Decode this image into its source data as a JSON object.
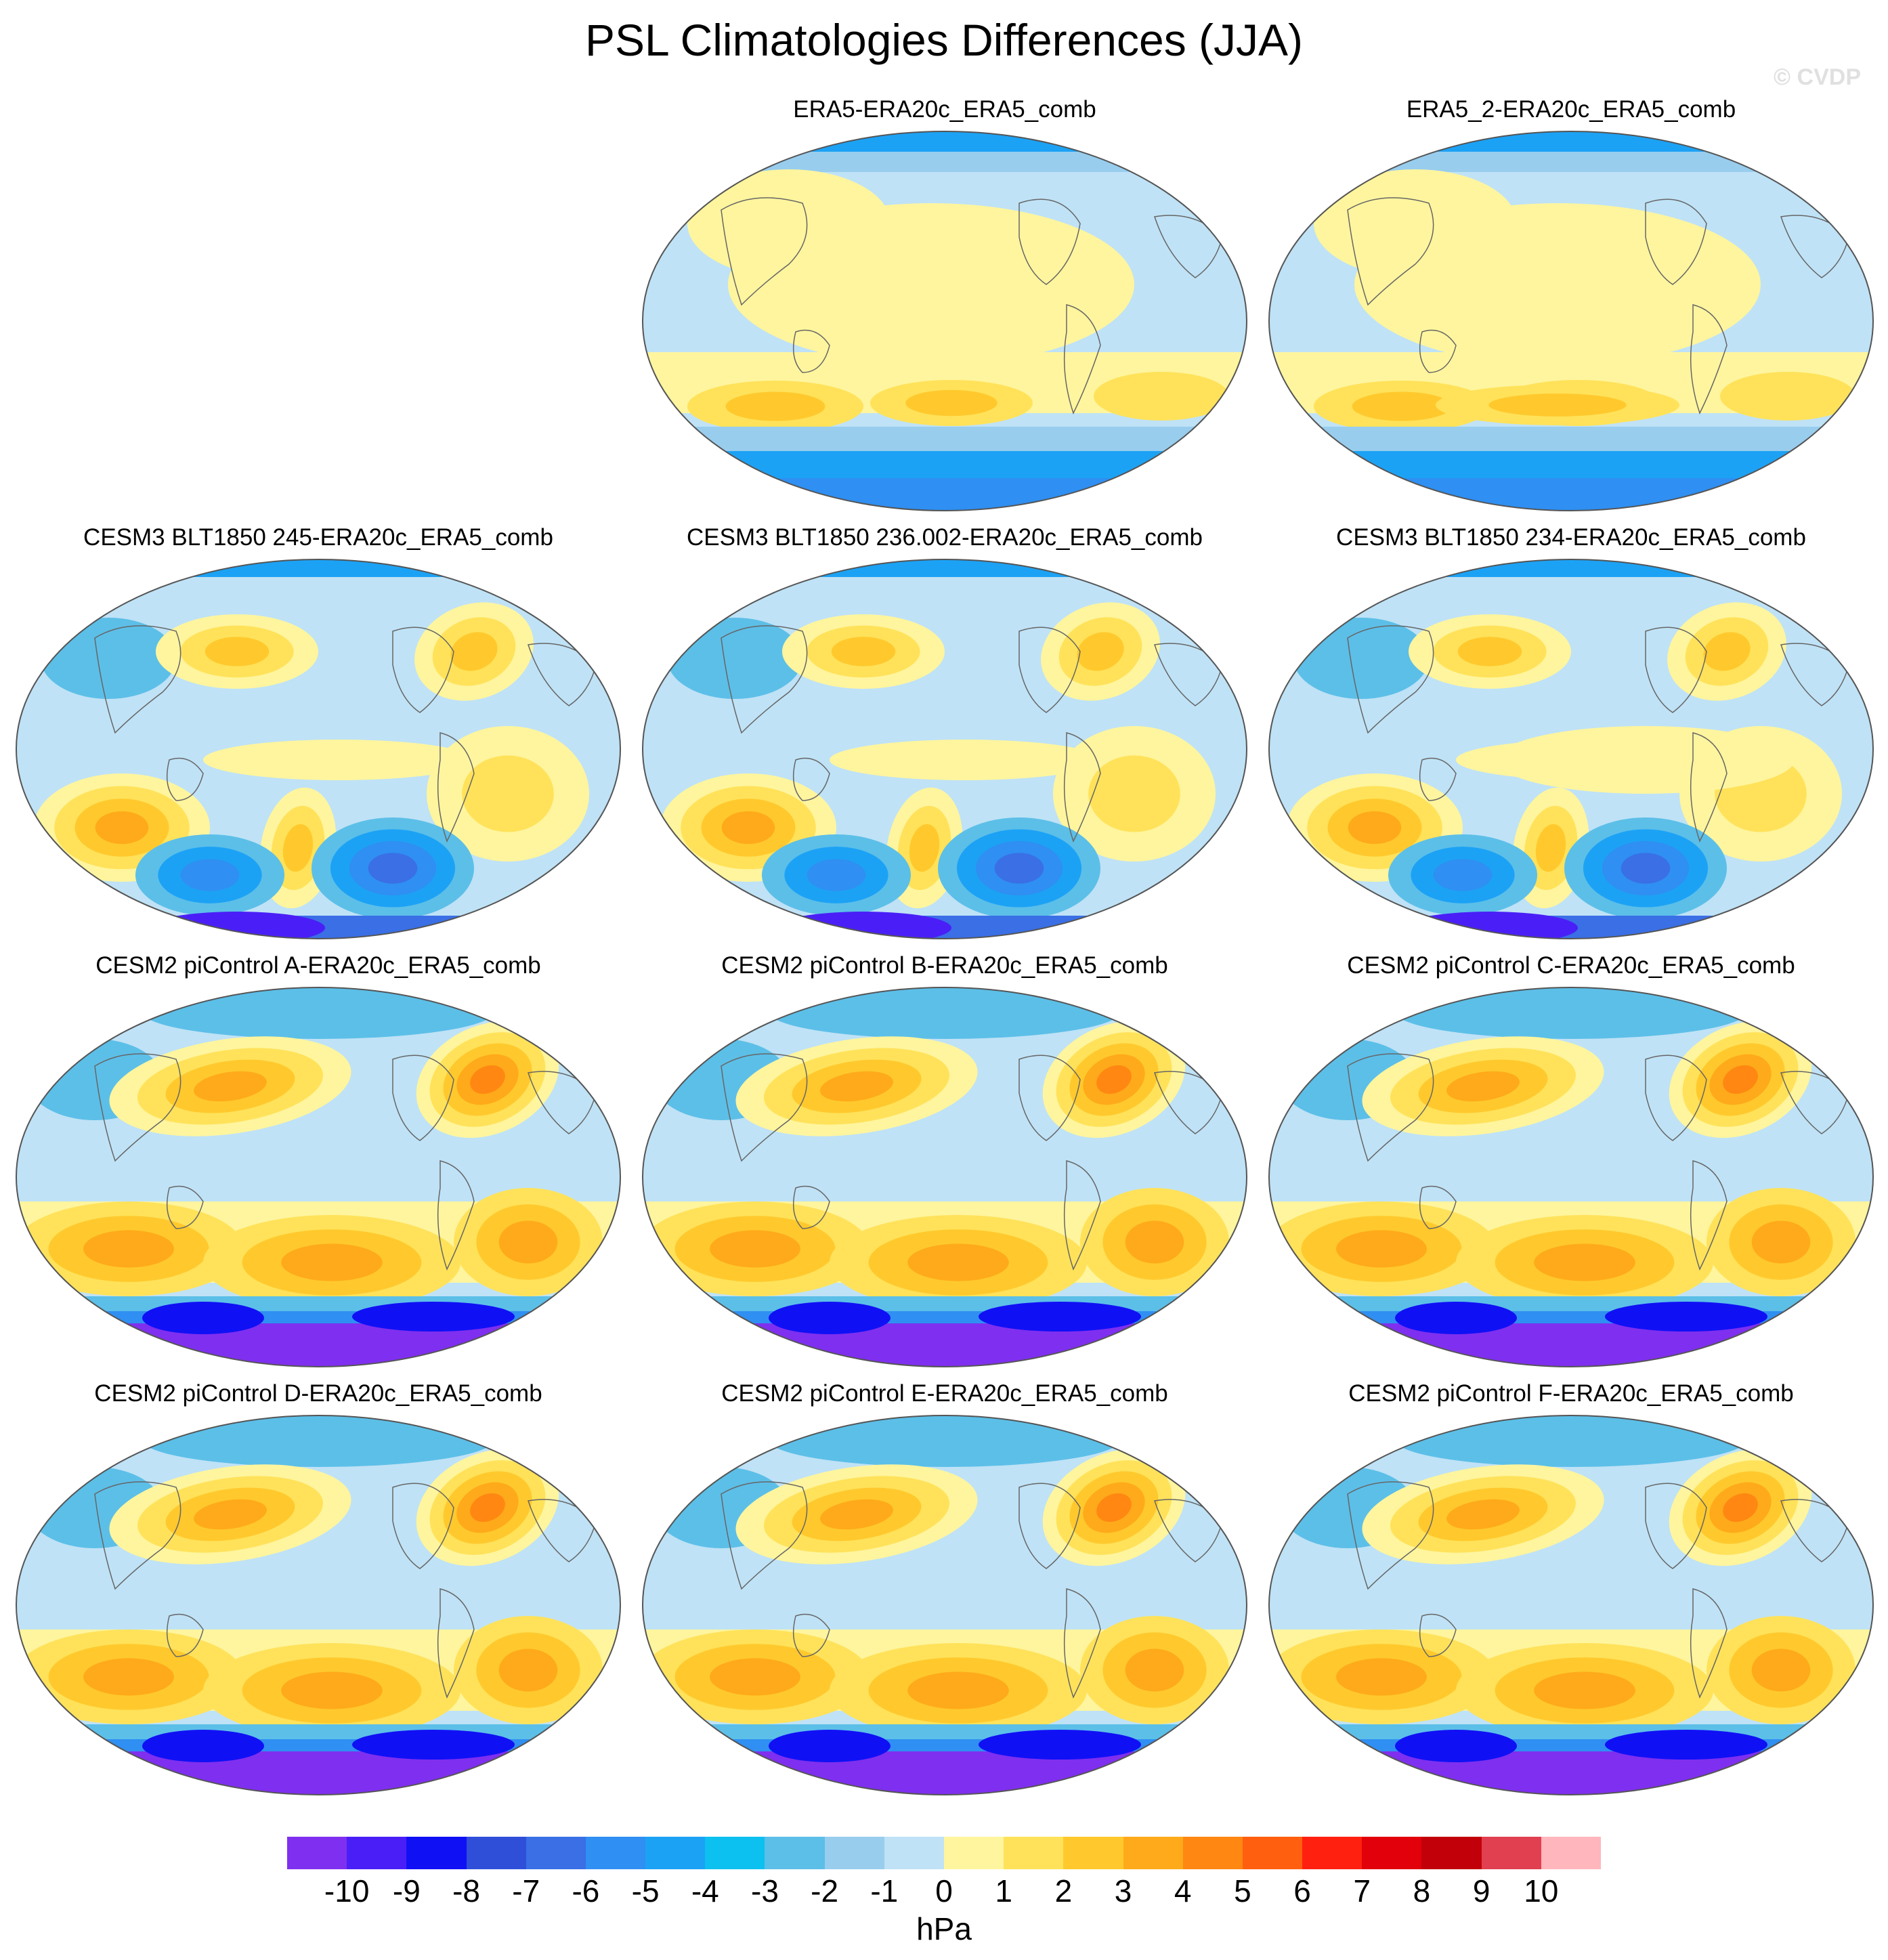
{
  "title": "PSL Climatologies Differences (JJA)",
  "watermark": "© CVDP",
  "units": "hPa",
  "colorbar": {
    "labels": [
      "-10",
      "-9",
      "-8",
      "-7",
      "-6",
      "-5",
      "-4",
      "-3",
      "-2",
      "-1",
      "0",
      "1",
      "2",
      "3",
      "4",
      "5",
      "6",
      "7",
      "8",
      "9",
      "10"
    ],
    "colors": [
      "#7f2fef",
      "#4a1ff7",
      "#1010f5",
      "#2f4fd9",
      "#3a6fe6",
      "#2f8ff2",
      "#1ca2f5",
      "#0cc0f0",
      "#5cbfe8",
      "#98cdee",
      "#bfe2f6",
      "#fff59e",
      "#ffe25a",
      "#ffc92d",
      "#ffaa1a",
      "#ff8712",
      "#ff5f0f",
      "#ff2010",
      "#e2000a",
      "#c1000a",
      "#e04050",
      "#ffb6bd"
    ]
  },
  "panels": [
    {
      "title": "ERA5-ERA20c_ERA5_comb",
      "style": "era"
    },
    {
      "title": "ERA5_2-ERA20c_ERA5_comb",
      "style": "era2"
    },
    {
      "title": "CESM3 BLT1850 245-ERA20c_ERA5_comb",
      "style": "cesm3"
    },
    {
      "title": "CESM3 BLT1850 236.002-ERA20c_ERA5_comb",
      "style": "cesm3"
    },
    {
      "title": "CESM3 BLT1850 234-ERA20c_ERA5_comb",
      "style": "cesm3b"
    },
    {
      "title": "CESM2 piControl A-ERA20c_ERA5_comb",
      "style": "cesm2"
    },
    {
      "title": "CESM2 piControl B-ERA20c_ERA5_comb",
      "style": "cesm2"
    },
    {
      "title": "CESM2 piControl C-ERA20c_ERA5_comb",
      "style": "cesm2"
    },
    {
      "title": "CESM2 piControl D-ERA20c_ERA5_comb",
      "style": "cesm2"
    },
    {
      "title": "CESM2 piControl E-ERA20c_ERA5_comb",
      "style": "cesm2"
    },
    {
      "title": "CESM2 piControl F-ERA20c_ERA5_comb",
      "style": "cesm2"
    }
  ]
}
